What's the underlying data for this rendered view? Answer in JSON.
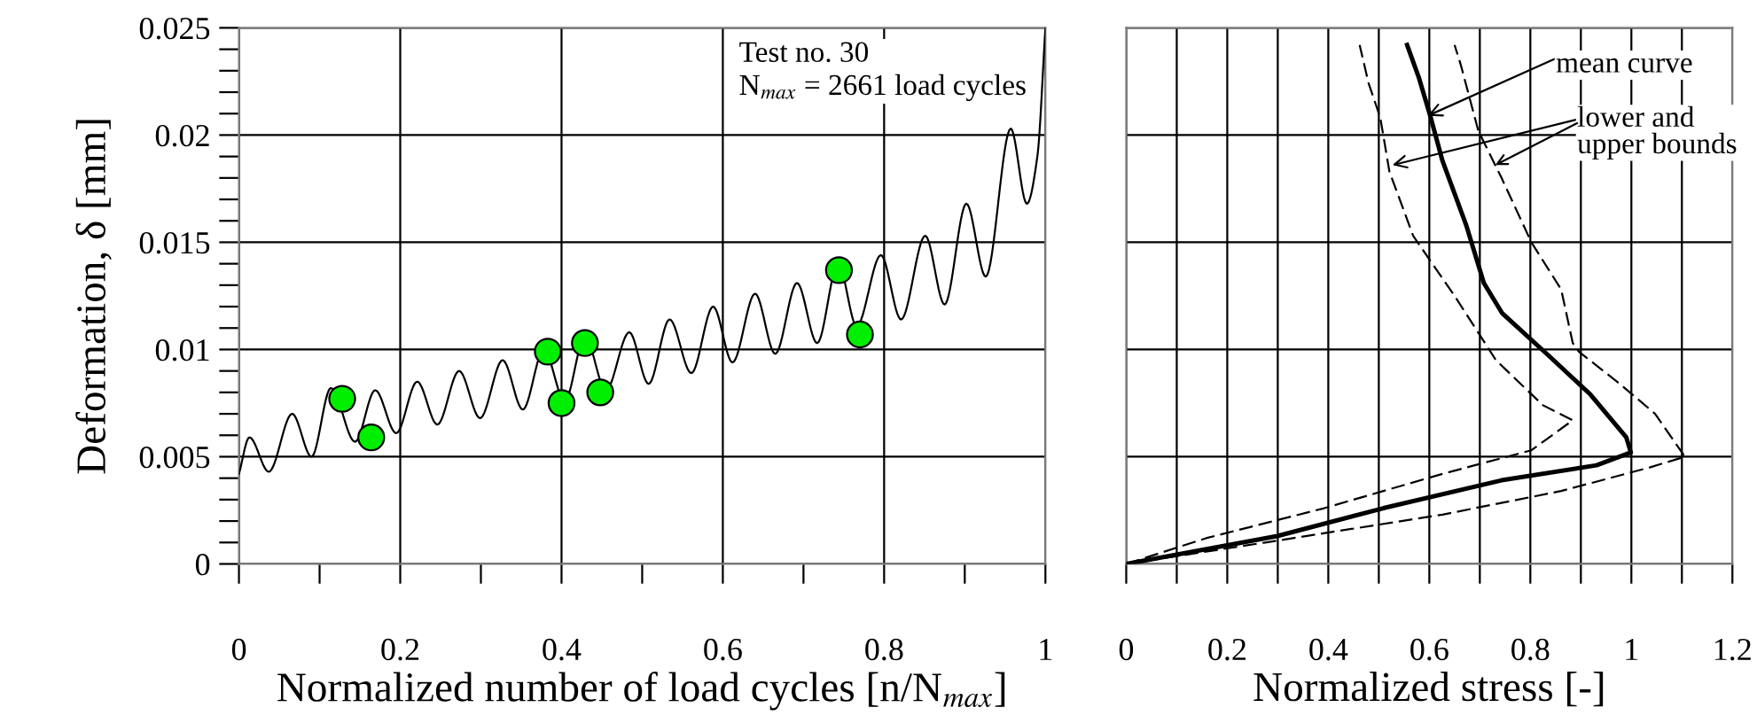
{
  "chart_data": [
    {
      "type": "line",
      "xlabel": "Normalized number of load cycles [n/N$_{max}$]",
      "ylabel": "Deformation, δ [mm]",
      "annotations": [
        "Test no. 30\nN$_{max}$ = 2661 load cycles"
      ],
      "xlim": [
        0,
        1
      ],
      "ylim": [
        0,
        0.025
      ],
      "xticks": [
        0,
        0.2,
        0.4,
        0.6,
        0.8,
        1
      ],
      "yticks": [
        0,
        0.005,
        0.01,
        0.015,
        0.02,
        0.025
      ],
      "grid": true,
      "series": [
        {
          "color": "#000000",
          "marker": "none",
          "line_style": "solid",
          "x": [
            0,
            0.013,
            0.037,
            0.066,
            0.09,
            0.114,
            0.144,
            0.169,
            0.195,
            0.221,
            0.246,
            0.273,
            0.299,
            0.327,
            0.352,
            0.378,
            0.404,
            0.429,
            0.455,
            0.484,
            0.508,
            0.534,
            0.561,
            0.588,
            0.612,
            0.64,
            0.665,
            0.692,
            0.717,
            0.743,
            0.766,
            0.796,
            0.821,
            0.851,
            0.875,
            0.902,
            0.926,
            0.957,
            0.977,
            0.99,
            1
          ],
          "values": [
            0.0042,
            0.0059,
            0.0043,
            0.007,
            0.005,
            0.0082,
            0.0057,
            0.0081,
            0.0061,
            0.0085,
            0.0065,
            0.009,
            0.0068,
            0.0095,
            0.0072,
            0.01,
            0.0076,
            0.0106,
            0.0081,
            0.0108,
            0.0084,
            0.0114,
            0.0089,
            0.012,
            0.0094,
            0.0126,
            0.0098,
            0.0131,
            0.0103,
            0.014,
            0.0111,
            0.0144,
            0.0114,
            0.0153,
            0.0121,
            0.0168,
            0.0134,
            0.0203,
            0.0168,
            0.019,
            0.025
          ]
        },
        {
          "type": "scatter",
          "color": "#00ee00",
          "marker": "circle",
          "x": [
            0.128,
            0.164,
            0.383,
            0.4,
            0.429,
            0.448,
            0.744,
            0.77
          ],
          "values": [
            0.0077,
            0.0059,
            0.0099,
            0.0075,
            0.0103,
            0.008,
            0.0137,
            0.0107
          ]
        }
      ]
    },
    {
      "type": "line",
      "xlabel": "Normalized stress [-]",
      "tick_labels": "x",
      "annotations": [
        {
          "text": "mean curve",
          "x": 0.597,
          "y": 0.0209
        },
        {
          "text": "lower and\nupper bounds",
          "x": 0.527,
          "y": 0.0186
        }
      ],
      "xlim": [
        0,
        1.2
      ],
      "ylim": [
        0,
        0.025
      ],
      "xticks": [
        0,
        {
          "value": 0.1,
          "label": null
        },
        0.2,
        {
          "value": 0.3,
          "label": null
        },
        0.4,
        {
          "value": 0.5,
          "label": null
        },
        0.6,
        {
          "value": 0.7,
          "label": null
        },
        0.8,
        {
          "value": 0.9,
          "label": null
        },
        1,
        {
          "value": 1.1,
          "label": null
        },
        1.2
      ],
      "yticks": [
        0,
        0.005,
        0.01,
        0.015,
        0.02,
        0.025
      ],
      "grid": true,
      "series": [
        {
          "color": "#000000",
          "line_style": "solid",
          "x": [
            0,
            0.299,
            0.509,
            0.743,
            0.931,
            0.999,
            0.99,
            0.919,
            0.837,
            0.744,
            0.708,
            0.673,
            0.626,
            0.603,
            0.579,
            0.556
          ],
          "values": [
            0,
            0.0013,
            0.0026,
            0.0039,
            0.0046,
            0.0052,
            0.0059,
            0.0079,
            0.0097,
            0.0117,
            0.0131,
            0.0158,
            0.0188,
            0.0208,
            0.0227,
            0.0242
          ]
        },
        {
          "color": "#000000",
          "line_style": "dashed",
          "x": [
            0,
            0.158,
            0.392,
            0.626,
            0.802,
            0.884,
            0.825,
            0.732,
            0.65,
            0.568,
            0.521,
            0.503,
            0.48,
            0.462
          ],
          "values": [
            0,
            0.0012,
            0.0026,
            0.0042,
            0.0053,
            0.0067,
            0.0074,
            0.0095,
            0.0125,
            0.0153,
            0.0183,
            0.0208,
            0.0224,
            0.0242
          ]
        },
        {
          "color": "#000000",
          "line_style": "dashed",
          "x": [
            0,
            0.275,
            0.626,
            0.861,
            1.036,
            1.106,
            1.047,
            0.977,
            0.896,
            0.884,
            0.861,
            0.802,
            0.743,
            0.697,
            0.662,
            0.65
          ],
          "values": [
            0,
            0.001,
            0.0023,
            0.0034,
            0.0045,
            0.005,
            0.007,
            0.0084,
            0.0099,
            0.0103,
            0.0128,
            0.015,
            0.018,
            0.0202,
            0.0233,
            0.0242
          ]
        }
      ]
    }
  ]
}
